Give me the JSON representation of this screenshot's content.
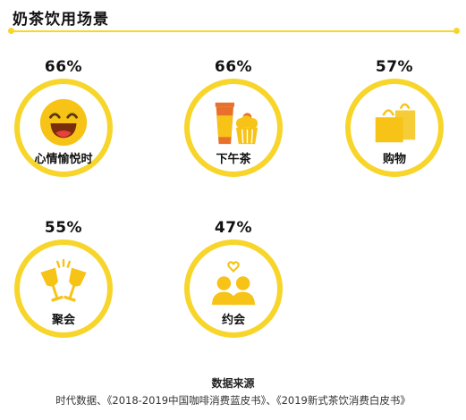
{
  "title": "奶茶饮用场景",
  "accent_color": "#f7d52a",
  "icon_color": "#f6c316",
  "chart_data": {
    "type": "bar",
    "title": "奶茶饮用场景",
    "categories": [
      "心情愉悦时",
      "下午茶",
      "购物",
      "聚会",
      "约会"
    ],
    "values": [
      66,
      66,
      57,
      55,
      47
    ],
    "value_labels": [
      "66%",
      "66%",
      "57%",
      "55%",
      "47%"
    ],
    "icons": [
      "smiling-face-icon",
      "tea-and-cake-icon",
      "shopping-bags-icon",
      "toasting-glasses-icon",
      "couple-heart-icon"
    ]
  },
  "source": {
    "heading": "数据来源",
    "text": "时代数据、《2018-2019中国咖啡消费蓝皮书》、《2019新式茶饮消费白皮书》"
  }
}
